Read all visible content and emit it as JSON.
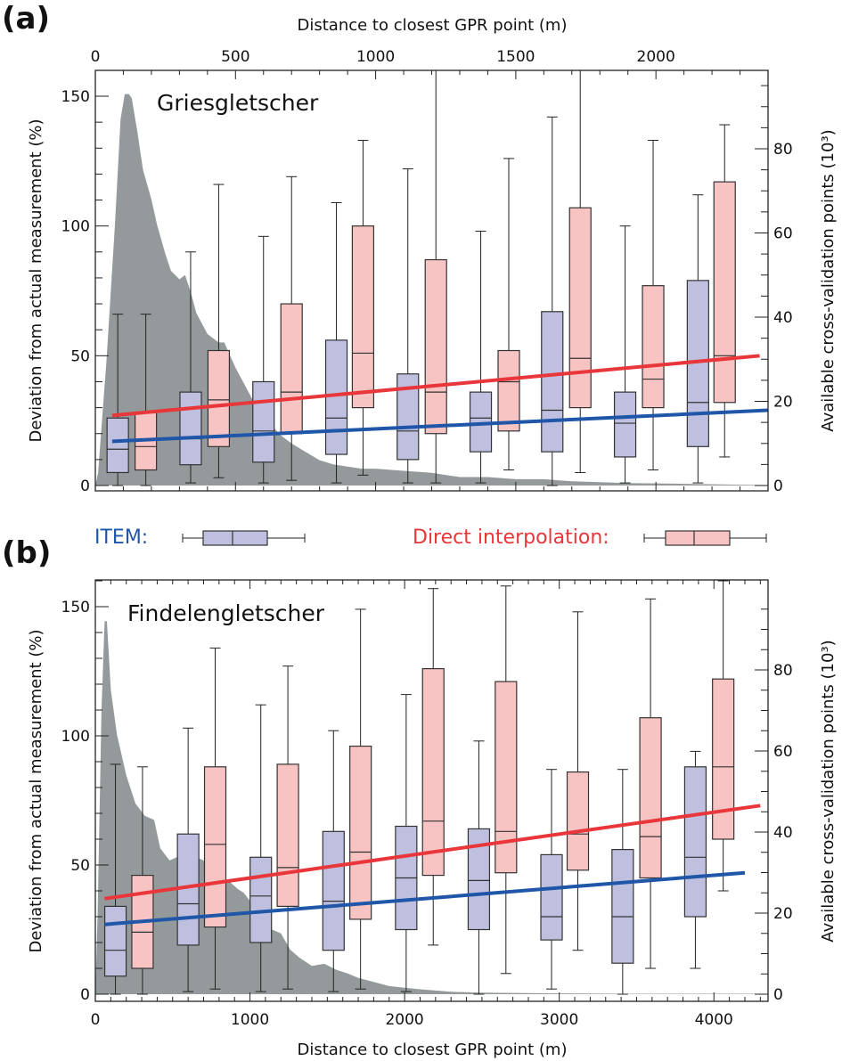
{
  "colors": {
    "item": "#1f56a8",
    "item_box": "#bfc0e0",
    "direct": "#e8363a",
    "direct_box": "#f8c3c3",
    "density": "#949a9b",
    "frame": "#222222"
  },
  "legend": {
    "item_label": "ITEM:",
    "direct_label": "Direct interpolation:"
  },
  "chart_data": [
    {
      "type": "box",
      "panel_label": "(a)",
      "title": "Griesgletscher",
      "xlabel": "Distance to closest GPR point (m)",
      "xlabel_position": "top",
      "ylabel": "Deviation from actual measurement (%)",
      "y2label": "Available cross-validation points (10³)",
      "xlim": [
        0,
        2400
      ],
      "ylim": [
        0,
        160
      ],
      "y2lim": [
        0,
        97
      ],
      "xticks": [
        0,
        500,
        1000,
        1500,
        2000
      ],
      "yticks": [
        0,
        50,
        100,
        150
      ],
      "y2ticks": [
        0,
        20,
        40,
        60,
        80
      ],
      "series": [
        {
          "name": "ITEM",
          "x": [
            80,
            340,
            600,
            860,
            1115,
            1375,
            1630,
            1890,
            2150
          ],
          "whisker_low": [
            0,
            1,
            1,
            1,
            1,
            1,
            0,
            1,
            1
          ],
          "q1": [
            5,
            8,
            9,
            12,
            10,
            13,
            13,
            11,
            15
          ],
          "median": [
            14,
            18,
            21,
            26,
            21,
            26,
            29,
            24,
            32
          ],
          "q3": [
            26,
            36,
            40,
            56,
            43,
            36,
            67,
            36,
            79
          ],
          "whisker_high": [
            66,
            90,
            96,
            109,
            122,
            98,
            142,
            100,
            112
          ]
        },
        {
          "name": "Direct interpolation",
          "x": [
            180,
            440,
            700,
            955,
            1215,
            1475,
            1730,
            1990,
            2245
          ],
          "whisker_low": [
            0,
            3,
            2,
            4,
            1,
            6,
            5,
            6,
            11
          ],
          "q1": [
            6,
            15,
            20,
            30,
            20,
            21,
            30,
            30,
            32
          ],
          "median": [
            15,
            33,
            36,
            51,
            36,
            40,
            49,
            41,
            50
          ],
          "q3": [
            28,
            52,
            70,
            100,
            87,
            52,
            107,
            77,
            117
          ],
          "whisker_high": [
            66,
            116,
            119,
            133,
            160,
            126,
            160,
            133,
            139
          ]
        }
      ],
      "trend_lines": [
        {
          "name": "ITEM trend",
          "x": [
            60,
            2400
          ],
          "y": [
            17,
            29
          ]
        },
        {
          "name": "Direct interpolation trend",
          "x": [
            60,
            2370
          ],
          "y": [
            27,
            50
          ]
        }
      ],
      "density": {
        "name": "Available cross-validation points",
        "axis": "y2",
        "x": [
          0,
          10,
          40,
          70,
          90,
          105,
          120,
          130,
          150,
          170,
          200,
          220,
          250,
          270,
          300,
          320,
          340,
          360,
          400,
          440,
          460,
          500,
          540,
          580,
          620,
          660,
          700,
          750,
          800,
          850,
          900,
          950,
          1000,
          1100,
          1200,
          1300,
          1400,
          1500,
          1600,
          1700,
          1800,
          1900,
          2000,
          2100,
          2200,
          2300,
          2400
        ],
        "y": [
          0,
          3,
          30,
          62,
          87,
          93,
          93,
          92,
          84,
          75,
          68,
          62,
          55,
          51,
          49,
          50,
          46,
          41,
          36,
          34,
          34,
          28,
          23,
          18,
          15,
          12,
          10,
          8,
          6,
          5,
          4.5,
          4,
          4,
          3.5,
          3,
          2,
          2,
          1.5,
          1.5,
          1,
          0.8,
          0.6,
          0.5,
          0.4,
          0.3,
          0.2,
          0.1
        ]
      }
    },
    {
      "type": "box",
      "panel_label": "(b)",
      "title": "Findelengletscher",
      "xlabel": "Distance to closest GPR point (m)",
      "xlabel_position": "bottom",
      "ylabel": "Deviation from actual measurement (%)",
      "y2label": "Available cross-validation points (10³)",
      "xlim": [
        0,
        4350
      ],
      "ylim": [
        0,
        160
      ],
      "y2lim": [
        0,
        97
      ],
      "xticks": [
        0,
        1000,
        2000,
        3000,
        4000
      ],
      "yticks": [
        0,
        50,
        100,
        150
      ],
      "y2ticks": [
        0,
        20,
        40,
        60,
        80
      ],
      "series": [
        {
          "name": "ITEM",
          "x": [
            130,
            600,
            1070,
            1540,
            2010,
            2480,
            2950,
            3410,
            3880
          ],
          "whisker_low": [
            0,
            1,
            1,
            1,
            1,
            0,
            2,
            0,
            10
          ],
          "q1": [
            7,
            19,
            20,
            17,
            25,
            25,
            21,
            12,
            30
          ],
          "median": [
            17,
            35,
            38,
            36,
            45,
            44,
            30,
            30,
            53
          ],
          "q3": [
            34,
            62,
            53,
            63,
            65,
            64,
            54,
            56,
            88
          ],
          "whisker_high": [
            89,
            103,
            112,
            102,
            116,
            98,
            87,
            87,
            94
          ]
        },
        {
          "name": "Direct interpolation",
          "x": [
            305,
            775,
            1245,
            1715,
            2185,
            2655,
            3120,
            3590,
            4060
          ],
          "whisker_low": [
            0,
            2,
            2,
            2,
            19,
            8,
            17,
            10,
            40
          ],
          "q1": [
            10,
            26,
            34,
            29,
            46,
            47,
            48,
            45,
            60
          ],
          "median": [
            24,
            58,
            49,
            55,
            67,
            63,
            62,
            61,
            88
          ],
          "q3": [
            46,
            88,
            89,
            96,
            126,
            121,
            86,
            107,
            122
          ],
          "whisker_high": [
            88,
            134,
            127,
            149,
            157,
            158,
            148,
            153,
            160
          ]
        }
      ],
      "trend_lines": [
        {
          "name": "ITEM trend",
          "x": [
            60,
            4200
          ],
          "y": [
            27,
            47
          ]
        },
        {
          "name": "Direct interpolation trend",
          "x": [
            60,
            4300
          ],
          "y": [
            37,
            73
          ]
        }
      ],
      "density": {
        "name": "Available cross-validation points",
        "axis": "y2",
        "x": [
          0,
          15,
          40,
          60,
          75,
          100,
          140,
          200,
          260,
          320,
          380,
          420,
          480,
          540,
          600,
          640,
          700,
          760,
          800,
          860,
          920,
          960,
          1000,
          1080,
          1140,
          1200,
          1260,
          1320,
          1400,
          1480,
          1560,
          1640,
          1700,
          1800,
          1900,
          2000,
          2100,
          2200,
          2300,
          2500,
          2700,
          3000,
          3400,
          3800,
          4350
        ],
        "y": [
          0,
          20,
          70,
          92,
          92,
          75,
          64,
          54,
          47,
          44,
          43,
          36,
          33,
          34,
          35,
          34,
          33,
          28,
          25,
          28,
          26,
          25,
          23,
          18,
          16,
          15,
          11,
          9,
          7,
          7.5,
          6,
          5,
          4,
          3,
          2,
          1.6,
          1.2,
          0.9,
          0.6,
          0.4,
          0.3,
          0.2,
          0.1,
          0.1,
          0.1
        ]
      }
    }
  ]
}
